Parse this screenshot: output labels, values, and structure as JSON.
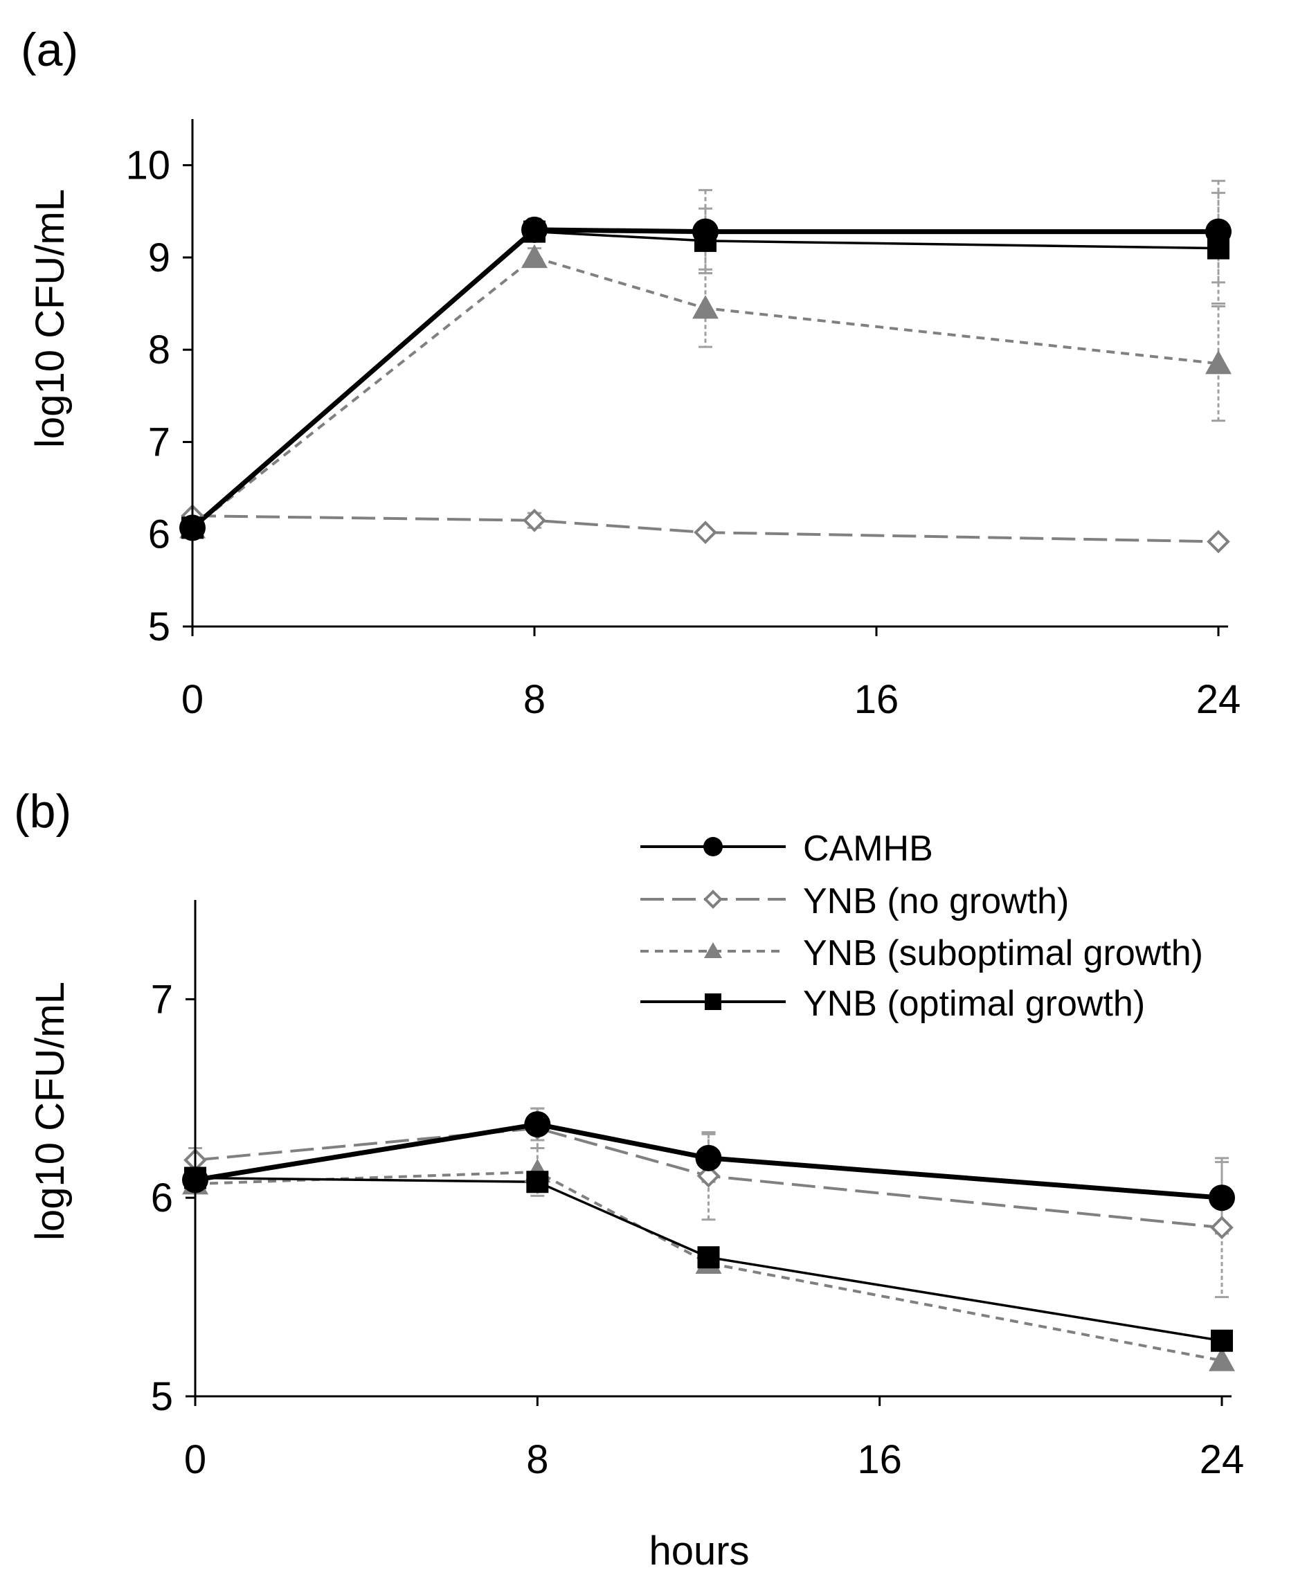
{
  "colors": {
    "black": "#000000",
    "gray": "#808080",
    "dark_gray": "#7f7f7f",
    "background": "#ffffff"
  },
  "chart_data": [
    {
      "type": "line",
      "panel_label": "(a)",
      "ylabel": "log10 CFU/mL",
      "xlabel": "",
      "xlim": [
        0,
        24
      ],
      "ylim": [
        5,
        10.5
      ],
      "x_ticks": [
        0,
        8,
        16,
        24
      ],
      "x_tick_labels": [
        "0",
        "8",
        "16",
        "24"
      ],
      "y_ticks": [
        5,
        6,
        7,
        8,
        9,
        10
      ],
      "y_tick_labels": [
        "5",
        "6",
        "7",
        "8",
        "9",
        "10"
      ],
      "series": [
        {
          "name": "CAMHB",
          "x": [
            0,
            8,
            12,
            24
          ],
          "y": [
            6.07,
            9.3,
            9.28,
            9.28
          ],
          "err": [
            0,
            0.12,
            0.45,
            0.55
          ]
        },
        {
          "name": "YNB (no growth)",
          "x": [
            0,
            8,
            12,
            24
          ],
          "y": [
            6.2,
            6.15,
            6.02,
            5.92
          ],
          "err": [
            0,
            0.08,
            0,
            0
          ]
        },
        {
          "name": "YNB (suboptimal growth)",
          "x": [
            0,
            8,
            12,
            24
          ],
          "y": [
            6.07,
            9.0,
            8.45,
            7.85
          ],
          "err": [
            0,
            0.1,
            0.42,
            0.62
          ]
        },
        {
          "name": "YNB (optimal growth)",
          "x": [
            0,
            8,
            12,
            24
          ],
          "y": [
            6.07,
            9.28,
            9.18,
            9.1
          ],
          "err": [
            0,
            0.1,
            0.35,
            0.6
          ]
        }
      ]
    },
    {
      "type": "line",
      "panel_label": "(b)",
      "ylabel": "log10 CFU/mL",
      "xlabel": "hours",
      "xlim": [
        0,
        24
      ],
      "ylim": [
        5,
        7.5
      ],
      "x_ticks": [
        0,
        8,
        16,
        24
      ],
      "x_tick_labels": [
        "0",
        "8",
        "16",
        "24"
      ],
      "y_ticks": [
        5,
        6,
        7
      ],
      "y_tick_labels": [
        "5",
        "6",
        "7"
      ],
      "legend_position": "top-right",
      "series": [
        {
          "name": "CAMHB",
          "x": [
            0,
            8,
            12,
            24
          ],
          "y": [
            6.09,
            6.37,
            6.2,
            6.0
          ],
          "err": [
            0,
            0.08,
            0.12,
            0.18
          ]
        },
        {
          "name": "YNB (no growth)",
          "x": [
            0,
            8,
            12,
            24
          ],
          "y": [
            6.19,
            6.35,
            6.11,
            5.85
          ],
          "err": [
            0.06,
            0.1,
            0.22,
            0.35
          ]
        },
        {
          "name": "YNB (suboptimal growth)",
          "x": [
            0,
            8,
            12,
            24
          ],
          "y": [
            6.07,
            6.13,
            5.67,
            5.18
          ],
          "err": [
            0,
            0.12,
            0,
            0
          ]
        },
        {
          "name": "YNB (optimal growth)",
          "x": [
            0,
            8,
            12,
            24
          ],
          "y": [
            6.1,
            6.08,
            5.7,
            5.28
          ],
          "err": [
            0,
            0,
            0,
            0
          ]
        }
      ]
    }
  ]
}
